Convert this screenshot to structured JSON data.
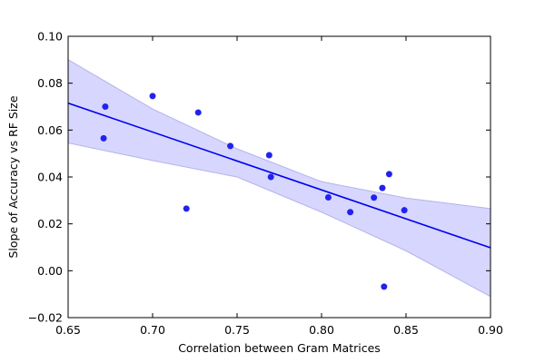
{
  "chart_data": {
    "type": "scatter",
    "xlabel": "Correlation between Gram Matrices",
    "ylabel": "Slope of Accuracy vs RF Size",
    "xlim": [
      0.65,
      0.9
    ],
    "ylim": [
      -0.02,
      0.1
    ],
    "x_ticks": [
      0.65,
      0.7,
      0.75,
      0.8,
      0.85,
      0.9
    ],
    "x_tick_labels": [
      "0.65",
      "0.70",
      "0.75",
      "0.80",
      "0.85",
      "0.90"
    ],
    "y_ticks": [
      -0.02,
      0.0,
      0.02,
      0.04,
      0.06,
      0.08,
      0.1
    ],
    "y_tick_labels": [
      "−0.02",
      "0.00",
      "0.02",
      "0.04",
      "0.06",
      "0.08",
      "0.10"
    ],
    "grid": false,
    "colors": {
      "points": "#2222ee",
      "line": "#0000ee",
      "band_fill": "#d6d6ff",
      "band_edge": "#b4b4e8"
    },
    "points": [
      {
        "x": 0.671,
        "y": 0.0565
      },
      {
        "x": 0.672,
        "y": 0.07
      },
      {
        "x": 0.7,
        "y": 0.0745
      },
      {
        "x": 0.72,
        "y": 0.0265
      },
      {
        "x": 0.727,
        "y": 0.0675
      },
      {
        "x": 0.746,
        "y": 0.0532
      },
      {
        "x": 0.769,
        "y": 0.0493
      },
      {
        "x": 0.77,
        "y": 0.04
      },
      {
        "x": 0.804,
        "y": 0.0313
      },
      {
        "x": 0.817,
        "y": 0.025
      },
      {
        "x": 0.831,
        "y": 0.0312
      },
      {
        "x": 0.836,
        "y": 0.0353
      },
      {
        "x": 0.837,
        "y": -0.0068
      },
      {
        "x": 0.84,
        "y": 0.0412
      },
      {
        "x": 0.849,
        "y": 0.0258
      }
    ],
    "regression": {
      "x": [
        0.65,
        0.9
      ],
      "y": [
        0.0715,
        0.0098
      ]
    },
    "confidence_band": {
      "x": [
        0.65,
        0.7,
        0.75,
        0.8,
        0.85,
        0.9
      ],
      "upper": [
        0.09,
        0.069,
        0.052,
        0.038,
        0.031,
        0.0265
      ],
      "lower": [
        0.0545,
        0.047,
        0.04,
        0.025,
        0.0085,
        -0.011
      ]
    }
  }
}
